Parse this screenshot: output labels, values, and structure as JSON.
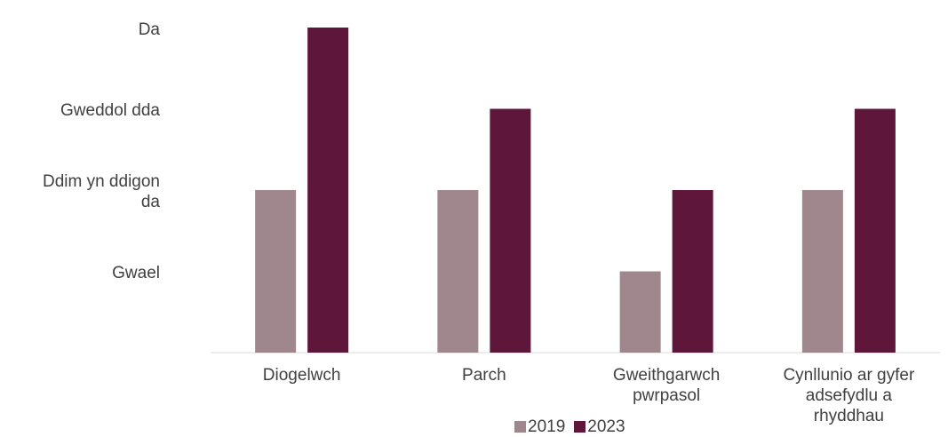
{
  "chart_data": {
    "type": "bar",
    "title": "",
    "xlabel": "",
    "ylabel": "",
    "ylim": [
      0,
      4
    ],
    "y_tick_values": [
      1,
      2,
      3,
      4
    ],
    "y_tick_labels": [
      "Gwael",
      "Ddim yn ddigon\nda",
      "Gweddol dda",
      "Da"
    ],
    "categories": [
      "Diogelwch",
      "Parch",
      "Gweithgarwch\npwrpasol",
      "Cynllunio ar gyfer\nadsefydlu a\nrhyddhau"
    ],
    "series": [
      {
        "name": "2019",
        "color": "#a0878d",
        "values": [
          2,
          2,
          1,
          2
        ]
      },
      {
        "name": "2023",
        "color": "#5e173b",
        "values": [
          4,
          3,
          2,
          3
        ]
      }
    ],
    "grid": false,
    "legend_position": "bottom"
  }
}
